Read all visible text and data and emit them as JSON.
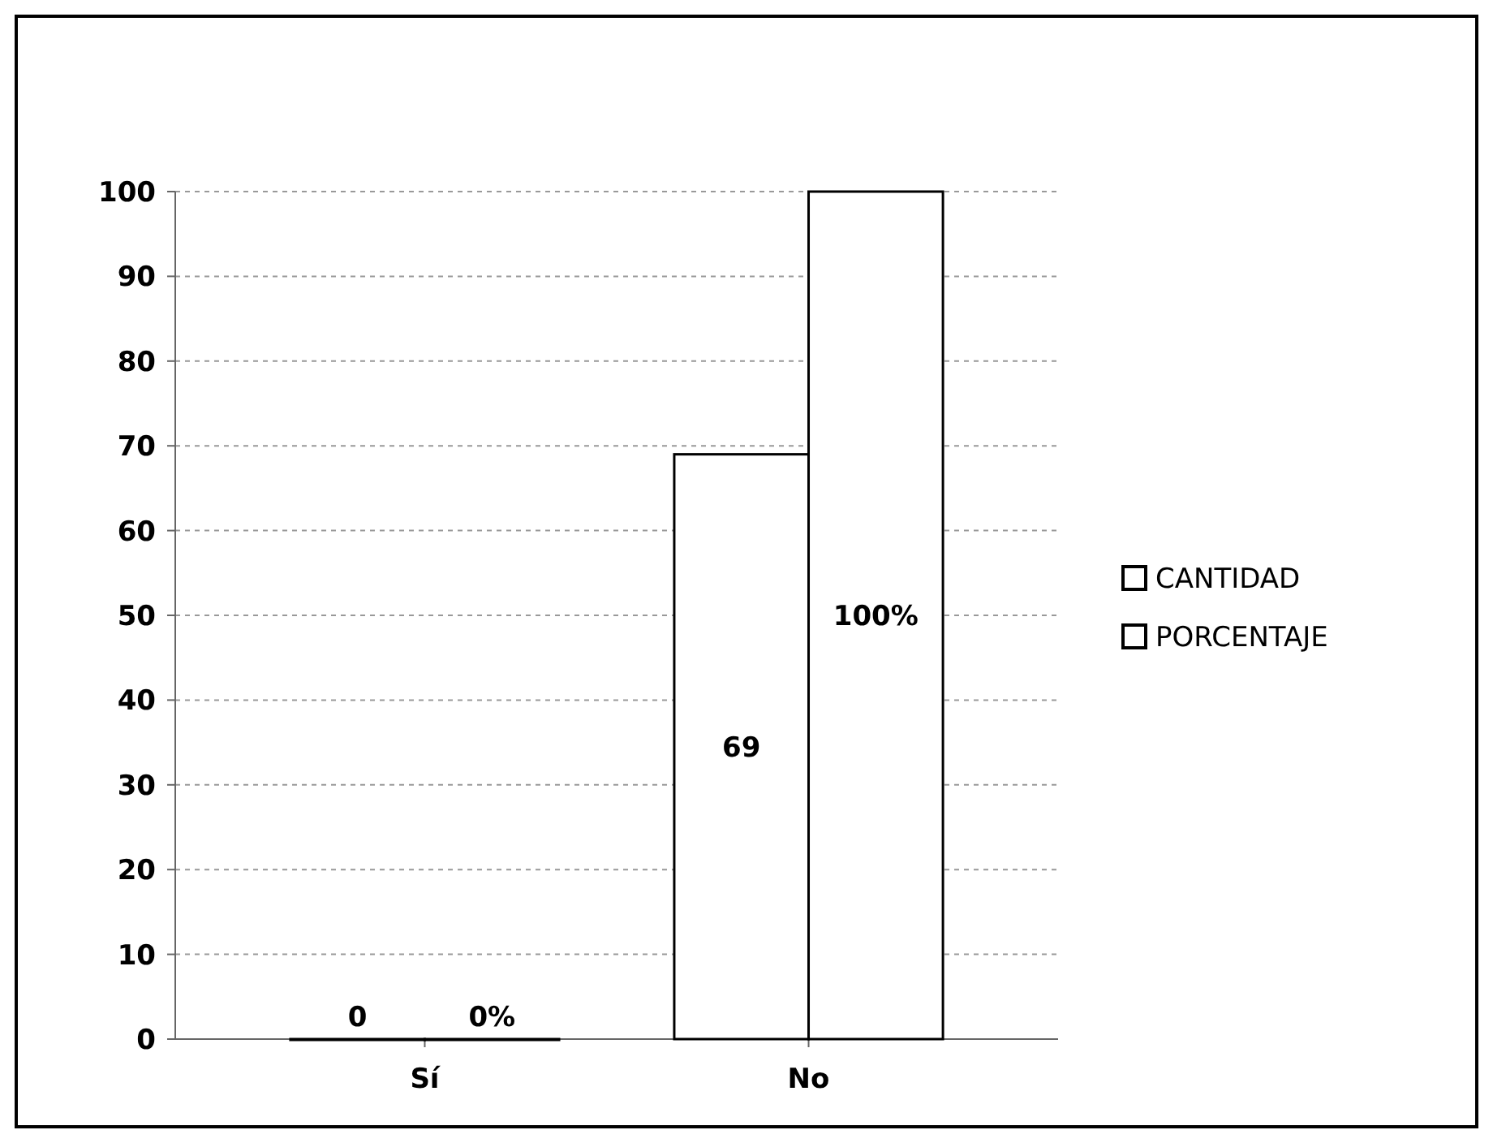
{
  "chart_data": {
    "type": "bar",
    "categories": [
      "Sí",
      "No"
    ],
    "series": [
      {
        "name": "CANTIDAD",
        "color": "#ffffff",
        "values": [
          0,
          69
        ],
        "value_labels": [
          "0",
          "69"
        ]
      },
      {
        "name": "PORCENTAJE",
        "color": "#ffffff",
        "values": [
          0,
          100
        ],
        "value_labels": [
          "0%",
          "100%"
        ]
      }
    ],
    "ylim": [
      0,
      100
    ],
    "yticks": [
      0,
      10,
      20,
      30,
      40,
      50,
      60,
      70,
      80,
      90,
      100
    ],
    "grid": "y",
    "legend": "right"
  }
}
